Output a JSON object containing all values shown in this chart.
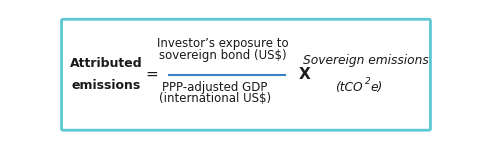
{
  "bg_color": "#ffffff",
  "border_color": "#5bc8d4",
  "border_linewidth": 2.0,
  "left_label_line1": "Attributed",
  "left_label_line2": "emissions",
  "equals_sign": "=",
  "numerator_line1": "Investor’s exposure to",
  "numerator_line2": "sovereign bond (US$)",
  "denominator_line1": "PPP-adjusted GDP",
  "denominator_line2": "(international US$)",
  "multiply_sign": "X",
  "right_label_line1": "Sovereign emissions",
  "divider_color": "#3b7fc4",
  "text_color": "#1a1a1a",
  "figsize": [
    4.8,
    1.48
  ],
  "dpi": 100
}
